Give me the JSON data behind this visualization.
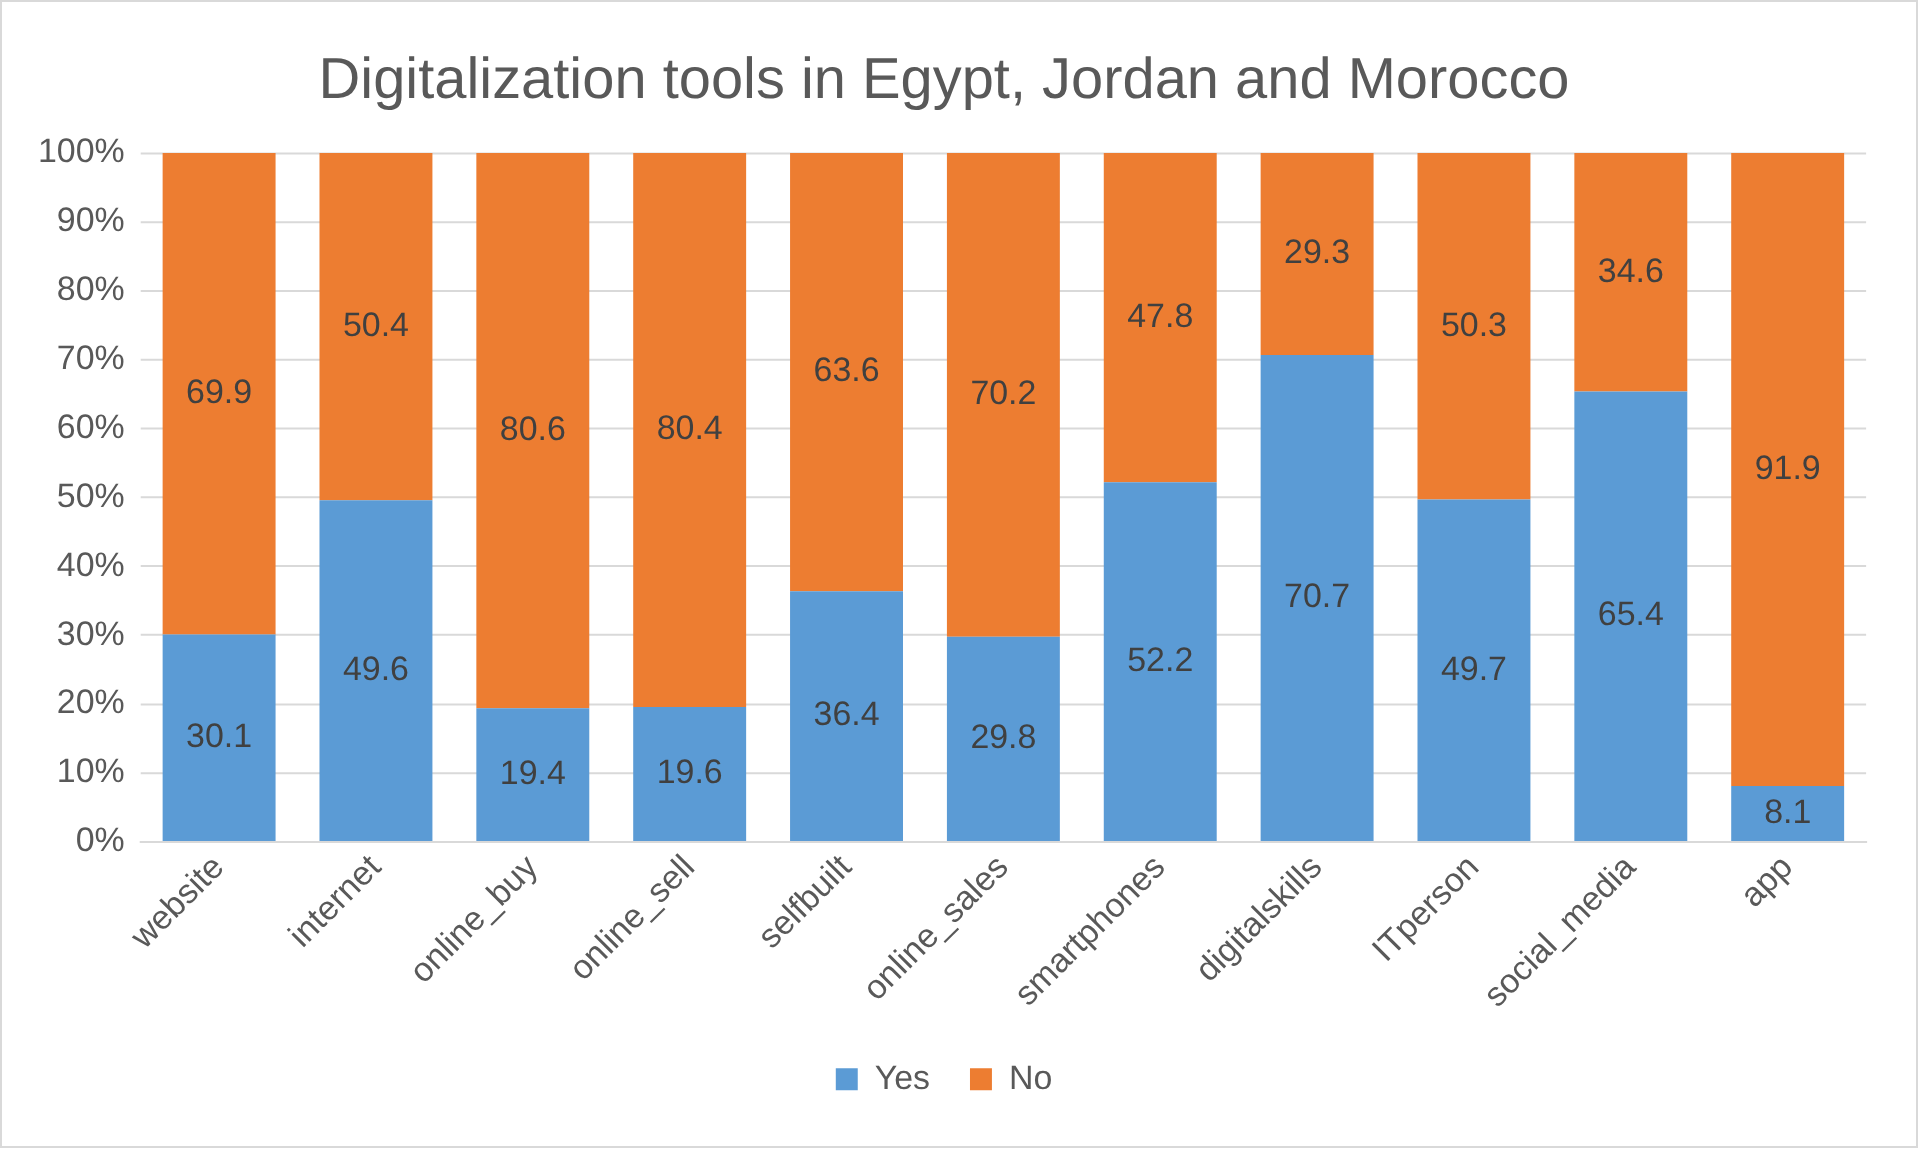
{
  "chart_data": {
    "type": "bar",
    "title": "Digitalization tools in Egypt, Jordan and Morocco",
    "categories": [
      "website",
      "internet",
      "online_buy",
      "online_sell",
      "selfbuilt",
      "online_sales",
      "smartphones",
      "digitalskills",
      "ITperson",
      "social_media",
      "app"
    ],
    "stacked": true,
    "data_labels": true,
    "legend": "bottom",
    "grid": "y",
    "ylim": [
      0,
      100
    ],
    "yticks": [
      {
        "value": 0,
        "label": "0%"
      },
      {
        "value": 10,
        "label": "10%"
      },
      {
        "value": 20,
        "label": "20%"
      },
      {
        "value": 30,
        "label": "30%"
      },
      {
        "value": 40,
        "label": "40%"
      },
      {
        "value": 50,
        "label": "50%"
      },
      {
        "value": 60,
        "label": "60%"
      },
      {
        "value": 70,
        "label": "70%"
      },
      {
        "value": 80,
        "label": "80%"
      },
      {
        "value": 90,
        "label": "90%"
      },
      {
        "value": 100,
        "label": "100%"
      }
    ],
    "series": [
      {
        "name": "Yes",
        "color": "#5b9bd5",
        "values": [
          30.1,
          49.6,
          19.4,
          19.6,
          36.4,
          29.8,
          52.2,
          70.7,
          49.7,
          65.4,
          8.1
        ]
      },
      {
        "name": "No",
        "color": "#ed7d31",
        "values": [
          69.9,
          50.4,
          80.6,
          80.4,
          63.6,
          70.2,
          47.8,
          29.3,
          50.3,
          34.6,
          91.9
        ]
      }
    ]
  }
}
